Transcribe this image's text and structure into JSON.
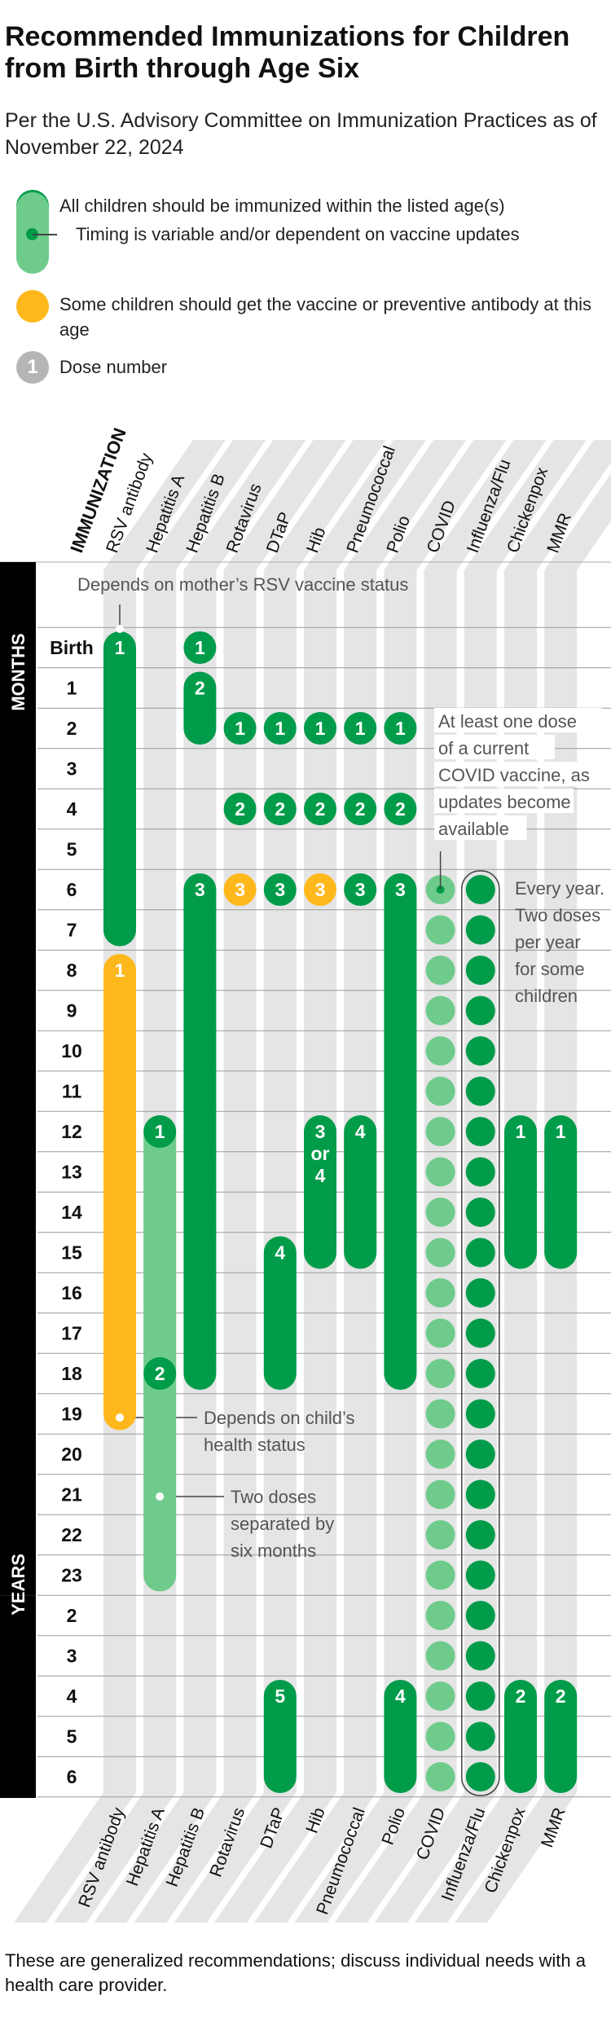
{
  "title": "Recommended Immunizations for Children from Birth through Age Six",
  "subtitle": "Per the U.S. Advisory Committee on Immunization Practices as of November 22, 2024",
  "legend": [
    {
      "kind": "required",
      "label": "All children should be immunized within the listed age(s)",
      "color": "#009c4a"
    },
    {
      "kind": "variable",
      "label": "Timing is variable and/or dependent on vaccine updates",
      "color": "#6fcb8c"
    },
    {
      "kind": "some",
      "label": "Some children should get the vaccine or preventive antibody at this age",
      "color": "#ffb81c"
    },
    {
      "kind": "dose",
      "label": "Dose number",
      "symbol": "1",
      "color": "#b5b5b5"
    }
  ],
  "footnote": "These are generalized recommendations; discuss individual needs with a health care provider.",
  "chart_data": {
    "type": "table",
    "column_header": "IMMUNIZATION",
    "columns": [
      "RSV antibody",
      "Hepatitis A",
      "Hepatitis B",
      "Rotavirus",
      "DTaP",
      "Hib",
      "Pneumococcal",
      "Polio",
      "COVID",
      "Influenza/Flu",
      "Chickenpox",
      "MMR"
    ],
    "sections": [
      {
        "label": "MONTHS",
        "first_row": 1,
        "last_row": 23
      },
      {
        "label": "YEARS",
        "first_row": 24,
        "last_row": 28
      }
    ],
    "rows": [
      "Birth",
      "1",
      "2",
      "3",
      "4",
      "5",
      "6",
      "7",
      "8",
      "9",
      "10",
      "11",
      "12",
      "13",
      "14",
      "15",
      "16",
      "17",
      "18",
      "19",
      "20",
      "21",
      "22",
      "23",
      "2",
      "3",
      "4",
      "5",
      "6"
    ],
    "bars": [
      {
        "column": "RSV antibody",
        "kind": "required",
        "from": "Birth",
        "to": "7 months",
        "dose": "1"
      },
      {
        "column": "RSV antibody",
        "kind": "some",
        "from": "8 months",
        "to": "19 months",
        "dose": "1"
      },
      {
        "column": "Hepatitis A",
        "kind": "variable",
        "from": "12 months",
        "to": "23 months"
      },
      {
        "column": "Hepatitis A",
        "kind": "required",
        "from": "12 months",
        "to": "12 months",
        "dose": "1"
      },
      {
        "column": "Hepatitis A",
        "kind": "required",
        "from": "18 months",
        "to": "18 months",
        "dose": "2"
      },
      {
        "column": "Hepatitis B",
        "kind": "required",
        "from": "Birth",
        "to": "Birth",
        "dose": "1"
      },
      {
        "column": "Hepatitis B",
        "kind": "required",
        "from": "1 month",
        "to": "2 months",
        "dose": "2"
      },
      {
        "column": "Hepatitis B",
        "kind": "required",
        "from": "6 months",
        "to": "18 months",
        "dose": "3"
      },
      {
        "column": "Rotavirus",
        "kind": "required",
        "from": "2 months",
        "to": "2 months",
        "dose": "1"
      },
      {
        "column": "Rotavirus",
        "kind": "required",
        "from": "4 months",
        "to": "4 months",
        "dose": "2"
      },
      {
        "column": "Rotavirus",
        "kind": "some",
        "from": "6 months",
        "to": "6 months",
        "dose": "3"
      },
      {
        "column": "DTaP",
        "kind": "required",
        "from": "2 months",
        "to": "2 months",
        "dose": "1"
      },
      {
        "column": "DTaP",
        "kind": "required",
        "from": "4 months",
        "to": "4 months",
        "dose": "2"
      },
      {
        "column": "DTaP",
        "kind": "required",
        "from": "6 months",
        "to": "6 months",
        "dose": "3"
      },
      {
        "column": "DTaP",
        "kind": "required",
        "from": "15 months",
        "to": "18 months",
        "dose": "4"
      },
      {
        "column": "DTaP",
        "kind": "required",
        "from": "4 years",
        "to": "6 years",
        "dose": "5"
      },
      {
        "column": "Hib",
        "kind": "required",
        "from": "2 months",
        "to": "2 months",
        "dose": "1"
      },
      {
        "column": "Hib",
        "kind": "required",
        "from": "4 months",
        "to": "4 months",
        "dose": "2"
      },
      {
        "column": "Hib",
        "kind": "some",
        "from": "6 months",
        "to": "6 months",
        "dose": "3"
      },
      {
        "column": "Hib",
        "kind": "required",
        "from": "12 months",
        "to": "15 months",
        "dose": "3 or 4"
      },
      {
        "column": "Pneumococcal",
        "kind": "required",
        "from": "2 months",
        "to": "2 months",
        "dose": "1"
      },
      {
        "column": "Pneumococcal",
        "kind": "required",
        "from": "4 months",
        "to": "4 months",
        "dose": "2"
      },
      {
        "column": "Pneumococcal",
        "kind": "required",
        "from": "6 months",
        "to": "6 months",
        "dose": "3"
      },
      {
        "column": "Pneumococcal",
        "kind": "required",
        "from": "12 months",
        "to": "15 months",
        "dose": "4"
      },
      {
        "column": "Polio",
        "kind": "required",
        "from": "2 months",
        "to": "2 months",
        "dose": "1"
      },
      {
        "column": "Polio",
        "kind": "required",
        "from": "4 months",
        "to": "4 months",
        "dose": "2"
      },
      {
        "column": "Polio",
        "kind": "required",
        "from": "6 months",
        "to": "18 months",
        "dose": "3"
      },
      {
        "column": "Polio",
        "kind": "required",
        "from": "4 years",
        "to": "6 years",
        "dose": "4"
      },
      {
        "column": "COVID",
        "kind": "variable",
        "from": "6 months",
        "to": "6 years",
        "note": "one dot per row"
      },
      {
        "column": "Influenza/Flu",
        "kind": "required",
        "from": "6 months",
        "to": "6 years",
        "note": "one dot per row"
      },
      {
        "column": "Chickenpox",
        "kind": "required",
        "from": "12 months",
        "to": "15 months",
        "dose": "1"
      },
      {
        "column": "Chickenpox",
        "kind": "required",
        "from": "4 years",
        "to": "6 years",
        "dose": "2"
      },
      {
        "column": "MMR",
        "kind": "required",
        "from": "12 months",
        "to": "15 months",
        "dose": "1"
      },
      {
        "column": "MMR",
        "kind": "required",
        "from": "4 years",
        "to": "6 years",
        "dose": "2"
      }
    ],
    "annotations": [
      {
        "lines": [
          "Depends on mother’s RSV vaccine status"
        ],
        "target": "RSV antibody, Birth"
      },
      {
        "lines": [
          "At least one dose",
          "of a current",
          "COVID vaccine, as",
          "updates become",
          "available"
        ],
        "target": "COVID, 6 months"
      },
      {
        "lines": [
          "Every year.",
          "Two doses",
          "per year",
          "for some",
          "children"
        ],
        "target": "Influenza/Flu, 6 months"
      },
      {
        "lines": [
          "Depends on child’s",
          "health status"
        ],
        "target": "RSV antibody, 19 months"
      },
      {
        "lines": [
          "Two doses",
          "separated by",
          "six months"
        ],
        "target": "Hepatitis A, 21 months"
      }
    ],
    "colors": {
      "required": "#009c4a",
      "variable": "#6fcb8c",
      "some": "#ffb81c",
      "stripe": "#e5e5e5",
      "section": "#000000"
    }
  }
}
